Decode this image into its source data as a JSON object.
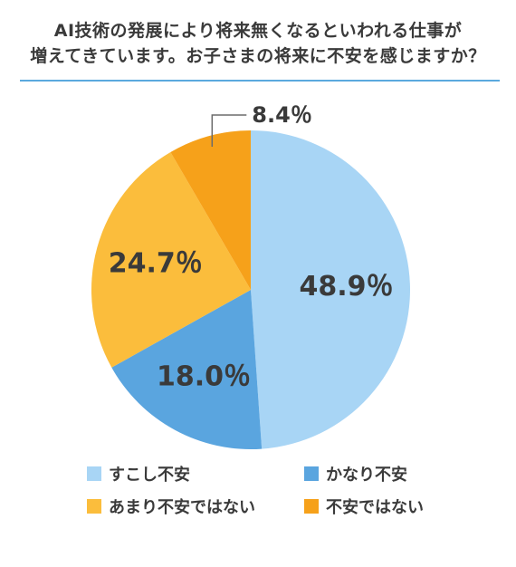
{
  "title_lines": [
    "AI技術の発展により将来無くなるといわれる仕事が",
    "増えてきています。お子さまの将来に不安を感じますか？"
  ],
  "colors": {
    "rule": "#5aa9de",
    "label_text": "#3a3a3a"
  },
  "chart_data": {
    "type": "pie",
    "title": "AI技術の発展により将来無くなるといわれる仕事が増えてきています。お子さまの将来に不安を感じますか？",
    "start": "12 o'clock",
    "direction": "clockwise",
    "legend_position": "bottom",
    "slices": [
      {
        "name": "すこし不安",
        "value": 48.9,
        "label": "48.9％",
        "color": "#a8d5f5"
      },
      {
        "name": "かなり不安",
        "value": 18.0,
        "label": "18.0％",
        "color": "#5aa5df"
      },
      {
        "name": "あまり不安ではない",
        "value": 24.7,
        "label": "24.7％",
        "color": "#fbbd3c"
      },
      {
        "name": "不安ではない",
        "value": 8.4,
        "label": "8.4％",
        "color": "#f6a11a"
      }
    ]
  }
}
